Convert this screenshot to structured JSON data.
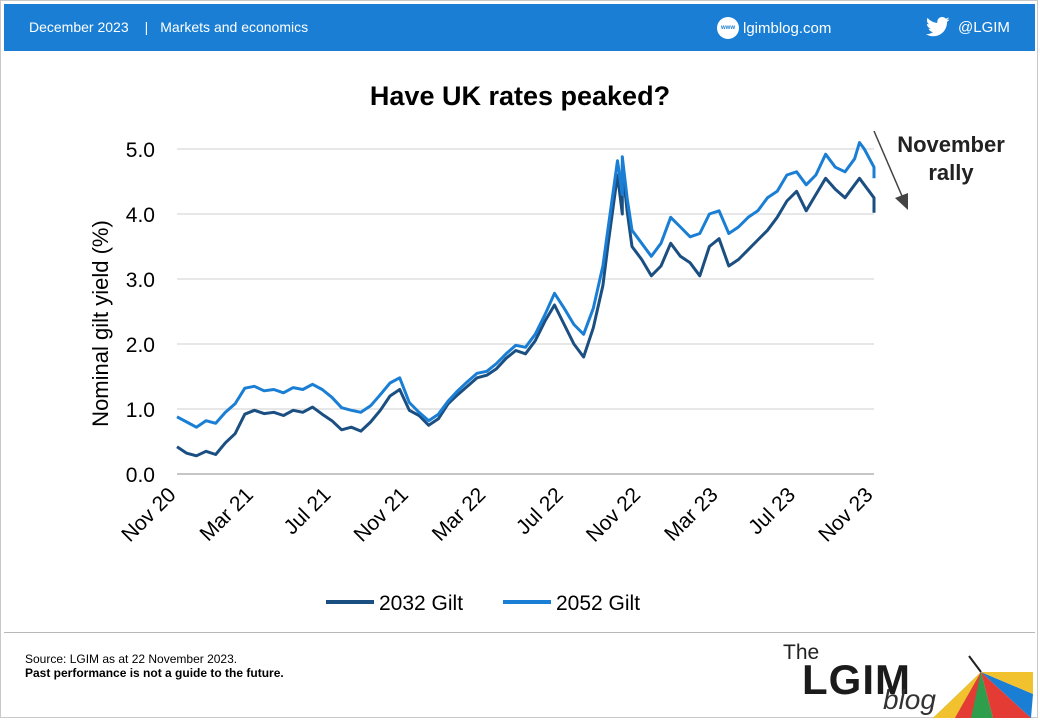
{
  "header": {
    "date": "December 2023",
    "separator": "|",
    "category": "Markets and economics",
    "site": "lgimblog.com",
    "globe_text": "www",
    "twitter": "@LGIM"
  },
  "footer": {
    "source": "Source: LGIM as at 22 November  2023.",
    "disclaimer": "Past performance is not a guide to the future.",
    "logo_the": "The",
    "logo_lgim": "LGIM",
    "logo_blog": "blog"
  },
  "colors": {
    "header_bg": "#1a7fd4",
    "series_2032": "#1b4f82",
    "series_2052": "#1a7fd4"
  },
  "chart_data": {
    "type": "line",
    "title": "Have UK rates peaked?",
    "ylabel": "Nominal gilt yield (%)",
    "xlabel": "",
    "ylim": [
      0,
      5
    ],
    "yticks": [
      "0.0",
      "1.0",
      "2.0",
      "3.0",
      "4.0",
      "5.0"
    ],
    "xlim": [
      "Nov 20",
      "Nov 23"
    ],
    "xticks": [
      "Nov 20",
      "Mar 21",
      "Jul 21",
      "Nov 21",
      "Mar 22",
      "Jul 22",
      "Nov 22",
      "Mar 23",
      "Jul 23",
      "Nov 23"
    ],
    "grid": "horizontal",
    "legend": "bottom",
    "annotation": {
      "text_line1": "November",
      "text_line2": "rally",
      "points_to": "Nov 23"
    },
    "series": [
      {
        "name": "2032 Gilt",
        "color": "#1b4f82",
        "points": [
          [
            "Nov 20",
            0.42
          ],
          [
            "Nov 20 w3",
            0.32
          ],
          [
            "Dec 20",
            0.28
          ],
          [
            "Dec 20 w3",
            0.35
          ],
          [
            "Jan 21",
            0.3
          ],
          [
            "Jan 21 w3",
            0.48
          ],
          [
            "Feb 21",
            0.62
          ],
          [
            "Feb 21 w3",
            0.92
          ],
          [
            "Mar 21",
            0.98
          ],
          [
            "Mar 21 w3",
            0.93
          ],
          [
            "Apr 21",
            0.95
          ],
          [
            "Apr 21 w3",
            0.9
          ],
          [
            "May 21",
            0.98
          ],
          [
            "May 21 w3",
            0.95
          ],
          [
            "Jun 21",
            1.03
          ],
          [
            "Jun 21 w3",
            0.92
          ],
          [
            "Jul 21",
            0.82
          ],
          [
            "Jul 21 w3",
            0.68
          ],
          [
            "Aug 21",
            0.72
          ],
          [
            "Aug 21 w3",
            0.66
          ],
          [
            "Sep 21",
            0.8
          ],
          [
            "Sep 21 w3",
            0.98
          ],
          [
            "Oct 21",
            1.2
          ],
          [
            "Oct 21 w3",
            1.3
          ],
          [
            "Nov 21",
            0.98
          ],
          [
            "Nov 21 w3",
            0.9
          ],
          [
            "Dec 21",
            0.75
          ],
          [
            "Dec 21 w3",
            0.85
          ],
          [
            "Jan 22",
            1.08
          ],
          [
            "Jan 22 w3",
            1.22
          ],
          [
            "Feb 22",
            1.35
          ],
          [
            "Feb 22 w3",
            1.48
          ],
          [
            "Mar 22",
            1.52
          ],
          [
            "Mar 22 w3",
            1.62
          ],
          [
            "Apr 22",
            1.78
          ],
          [
            "Apr 22 w3",
            1.9
          ],
          [
            "May 22",
            1.85
          ],
          [
            "May 22 w3",
            2.05
          ],
          [
            "Jun 22",
            2.35
          ],
          [
            "Jun 22 w3",
            2.6
          ],
          [
            "Jul 22",
            2.3
          ],
          [
            "Jul 22 w3",
            2.0
          ],
          [
            "Aug 22",
            1.8
          ],
          [
            "Aug 22 w3",
            2.25
          ],
          [
            "Sep 22",
            2.9
          ],
          [
            "Sep 22 w2",
            3.5
          ],
          [
            "Sep 22 w4",
            4.6
          ],
          [
            "Oct 22",
            4.0
          ],
          [
            "Oct 22 w1",
            4.75
          ],
          [
            "Oct 22 w2",
            4.05
          ],
          [
            "Oct 22 w3",
            3.5
          ],
          [
            "Nov 22",
            3.3
          ],
          [
            "Nov 22 w3",
            3.05
          ],
          [
            "Dec 22",
            3.2
          ],
          [
            "Dec 22 w3",
            3.55
          ],
          [
            "Jan 23",
            3.35
          ],
          [
            "Jan 23 w3",
            3.25
          ],
          [
            "Feb 23",
            3.05
          ],
          [
            "Feb 23 w3",
            3.5
          ],
          [
            "Mar 23",
            3.62
          ],
          [
            "Mar 23 w3",
            3.2
          ],
          [
            "Apr 23",
            3.3
          ],
          [
            "Apr 23 w3",
            3.45
          ],
          [
            "May 23",
            3.6
          ],
          [
            "May 23 w3",
            3.75
          ],
          [
            "Jun 23",
            3.95
          ],
          [
            "Jun 23 w3",
            4.2
          ],
          [
            "Jul 23",
            4.35
          ],
          [
            "Jul 23 w3",
            4.05
          ],
          [
            "Aug 23",
            4.3
          ],
          [
            "Aug 23 w3",
            4.55
          ],
          [
            "Sep 23",
            4.38
          ],
          [
            "Sep 23 w3",
            4.25
          ],
          [
            "Oct 23",
            4.45
          ],
          [
            "Oct 23 w2",
            4.55
          ],
          [
            "Oct 23 w3",
            4.45
          ],
          [
            "Nov 23 w1",
            4.25
          ],
          [
            "Nov 23",
            4.02
          ]
        ]
      },
      {
        "name": "2052 Gilt",
        "color": "#1a7fd4",
        "points": [
          [
            "Nov 20",
            0.88
          ],
          [
            "Nov 20 w3",
            0.8
          ],
          [
            "Dec 20",
            0.72
          ],
          [
            "Dec 20 w3",
            0.82
          ],
          [
            "Jan 21",
            0.78
          ],
          [
            "Jan 21 w3",
            0.95
          ],
          [
            "Feb 21",
            1.08
          ],
          [
            "Feb 21 w3",
            1.32
          ],
          [
            "Mar 21",
            1.35
          ],
          [
            "Mar 21 w3",
            1.28
          ],
          [
            "Apr 21",
            1.3
          ],
          [
            "Apr 21 w3",
            1.25
          ],
          [
            "May 21",
            1.33
          ],
          [
            "May 21 w3",
            1.3
          ],
          [
            "Jun 21",
            1.38
          ],
          [
            "Jun 21 w3",
            1.3
          ],
          [
            "Jul 21",
            1.18
          ],
          [
            "Jul 21 w3",
            1.02
          ],
          [
            "Aug 21",
            0.98
          ],
          [
            "Aug 21 w3",
            0.95
          ],
          [
            "Sep 21",
            1.05
          ],
          [
            "Sep 21 w3",
            1.22
          ],
          [
            "Oct 21",
            1.4
          ],
          [
            "Oct 21 w3",
            1.48
          ],
          [
            "Nov 21",
            1.1
          ],
          [
            "Nov 21 w3",
            0.95
          ],
          [
            "Dec 21",
            0.82
          ],
          [
            "Dec 21 w3",
            0.92
          ],
          [
            "Jan 22",
            1.12
          ],
          [
            "Jan 22 w3",
            1.28
          ],
          [
            "Feb 22",
            1.42
          ],
          [
            "Feb 22 w3",
            1.55
          ],
          [
            "Mar 22",
            1.58
          ],
          [
            "Mar 22 w3",
            1.7
          ],
          [
            "Apr 22",
            1.85
          ],
          [
            "Apr 22 w3",
            1.98
          ],
          [
            "May 22",
            1.95
          ],
          [
            "May 22 w3",
            2.15
          ],
          [
            "Jun 22",
            2.45
          ],
          [
            "Jun 22 w3",
            2.78
          ],
          [
            "Jul 22",
            2.55
          ],
          [
            "Jul 22 w3",
            2.3
          ],
          [
            "Aug 22",
            2.15
          ],
          [
            "Aug 22 w3",
            2.55
          ],
          [
            "Sep 22",
            3.2
          ],
          [
            "Sep 22 w2",
            3.75
          ],
          [
            "Sep 22 w4",
            4.82
          ],
          [
            "Oct 22",
            4.3
          ],
          [
            "Oct 22 w1",
            4.88
          ],
          [
            "Oct 22 w2",
            4.25
          ],
          [
            "Oct 22 w3",
            3.75
          ],
          [
            "Nov 22",
            3.55
          ],
          [
            "Nov 22 w3",
            3.35
          ],
          [
            "Dec 22",
            3.55
          ],
          [
            "Dec 22 w3",
            3.95
          ],
          [
            "Jan 23",
            3.8
          ],
          [
            "Jan 23 w3",
            3.65
          ],
          [
            "Feb 23",
            3.7
          ],
          [
            "Feb 23 w3",
            4.0
          ],
          [
            "Mar 23",
            4.05
          ],
          [
            "Mar 23 w3",
            3.7
          ],
          [
            "Apr 23",
            3.8
          ],
          [
            "Apr 23 w3",
            3.95
          ],
          [
            "May 23",
            4.05
          ],
          [
            "May 23 w3",
            4.25
          ],
          [
            "Jun 23",
            4.35
          ],
          [
            "Jun 23 w3",
            4.6
          ],
          [
            "Jul 23",
            4.65
          ],
          [
            "Jul 23 w3",
            4.45
          ],
          [
            "Aug 23",
            4.6
          ],
          [
            "Aug 23 w3",
            4.92
          ],
          [
            "Sep 23",
            4.72
          ],
          [
            "Sep 23 w3",
            4.65
          ],
          [
            "Oct 23",
            4.85
          ],
          [
            "Oct 23 w2",
            5.1
          ],
          [
            "Oct 23 w3",
            5.0
          ],
          [
            "Nov 23 w1",
            4.72
          ],
          [
            "Nov 23",
            4.55
          ]
        ]
      }
    ]
  }
}
